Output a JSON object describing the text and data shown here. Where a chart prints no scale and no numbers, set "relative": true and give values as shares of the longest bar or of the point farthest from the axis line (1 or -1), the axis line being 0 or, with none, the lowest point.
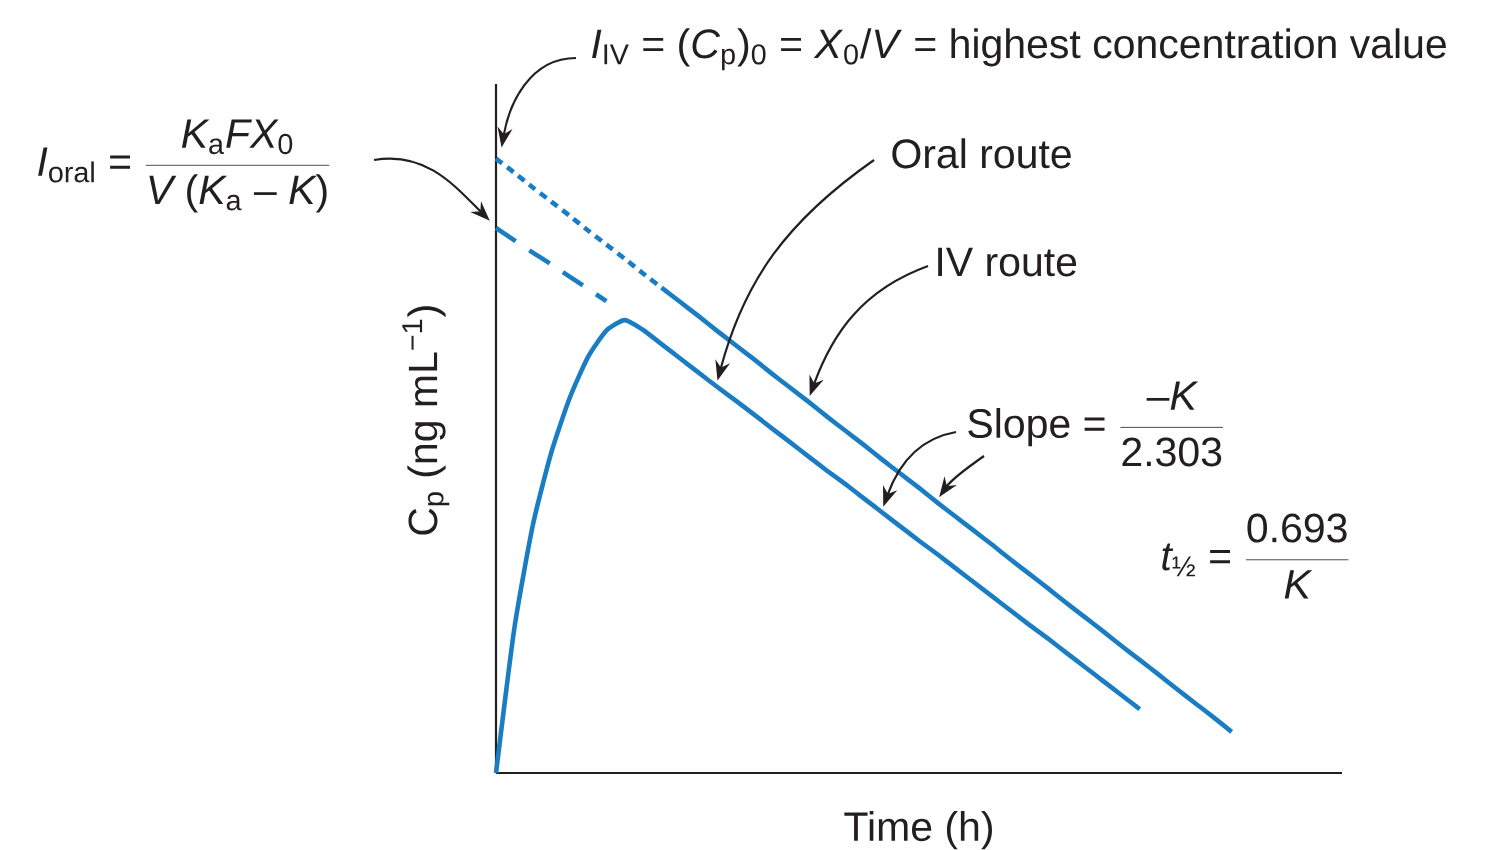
{
  "chart_data": {
    "type": "line",
    "relative": true,
    "marker": "none",
    "xlabel": "Time (h)",
    "ylabel": "C$_{p}$ (ng mL$^{−1}$)",
    "categories": [
      null,
      null,
      null,
      null,
      null,
      null,
      null,
      null,
      null,
      null,
      null,
      null,
      null,
      null,
      null,
      null,
      null,
      null,
      null,
      null,
      null,
      null,
      null,
      null,
      null,
      null,
      null,
      null,
      null,
      null,
      null,
      null,
      null,
      null,
      null,
      null,
      null,
      null,
      null,
      null,
      null,
      null,
      null,
      null,
      null,
      null,
      null
    ],
    "series": [
      {
        "color": "#1a7dc4",
        "line_style": "dotted",
        "values": [
          1.0,
          0.977,
          0.953,
          0.93,
          0.907,
          0.883,
          0.86,
          0.837,
          0.813,
          0.79,
          null,
          null,
          null,
          null,
          null,
          null,
          null,
          null,
          null,
          null,
          null,
          null,
          null,
          null,
          null,
          null,
          null,
          null,
          null,
          null,
          null,
          null,
          null,
          null,
          null,
          null,
          null,
          null,
          null,
          null,
          null,
          null,
          null,
          null,
          null,
          null,
          null
        ]
      },
      {
        "color": "#1a7dc4",
        "line_style": "solid",
        "values": [
          null,
          null,
          null,
          null,
          null,
          null,
          null,
          null,
          null,
          0.79,
          0.767,
          0.744,
          0.72,
          0.697,
          0.674,
          0.65,
          0.627,
          0.604,
          0.58,
          0.557,
          0.534,
          0.51,
          0.487,
          0.464,
          0.44,
          0.417,
          0.394,
          0.371,
          0.347,
          0.324,
          0.301,
          0.277,
          0.254,
          0.231,
          0.207,
          0.184,
          0.161,
          0.137,
          0.114,
          0.091,
          0.067,
          null,
          null,
          null,
          null,
          null,
          null
        ]
      },
      {
        "color": "#1a7dc4",
        "line_style": "dashed",
        "values": [
          0.887,
          0.867,
          0.847,
          0.828,
          0.808,
          0.788,
          0.768,
          null,
          null,
          null,
          null,
          null,
          null,
          null,
          null,
          null,
          null,
          null,
          null,
          null,
          null,
          null,
          null,
          null,
          null,
          null,
          null,
          null,
          null,
          null,
          null,
          null,
          null,
          null,
          null,
          null,
          null,
          null,
          null,
          null,
          null,
          null,
          null,
          null,
          null,
          null,
          null
        ]
      },
      {
        "color": "#1a7dc4",
        "line_style": "solid",
        "values": [
          0,
          0.236,
          0.403,
          0.521,
          0.61,
          0.677,
          0.72,
          0.737,
          0.721,
          0.698,
          0.675,
          0.652,
          0.629,
          0.607,
          0.584,
          0.561,
          0.538,
          0.515,
          0.492,
          0.47,
          0.447,
          0.424,
          0.401,
          0.378,
          0.356,
          0.333,
          0.31,
          0.287,
          0.264,
          0.241,
          0.219,
          0.196,
          0.173,
          0.15,
          0.127,
          0.104,
          null,
          null,
          null,
          null,
          null,
          null,
          null,
          null,
          null,
          null,
          null
        ]
      }
    ],
    "annotations": [
      "*I*$_{IV}$ = (*C*$_{p}$)$_{0}$ = *X*$_{0}$/*V* = highest concentration value",
      "\\mathit{I}_{\\mathrm{oral}}\\mbox{ = }\\frac{\\mathit{K}_{\\mathrm{a}}\\mathit{FX}_{\\mathrm{0}}}{\\mathit{V}\\mbox{ (}\\mathit{K}_{\\mathrm{a}}\\mbox{ – }\\mathit{K}\\mbox{)}}",
      "Oral route",
      "IV route",
      "\\mbox{Slope = }\\frac{\\mbox{–}\\mathit{K}}{\\mbox{2.303}}",
      "\\mathit{t}_{\\mathrm{½}}\\mbox{ = }\\frac{\\mbox{0.693}}{\\mathit{K}}"
    ]
  }
}
